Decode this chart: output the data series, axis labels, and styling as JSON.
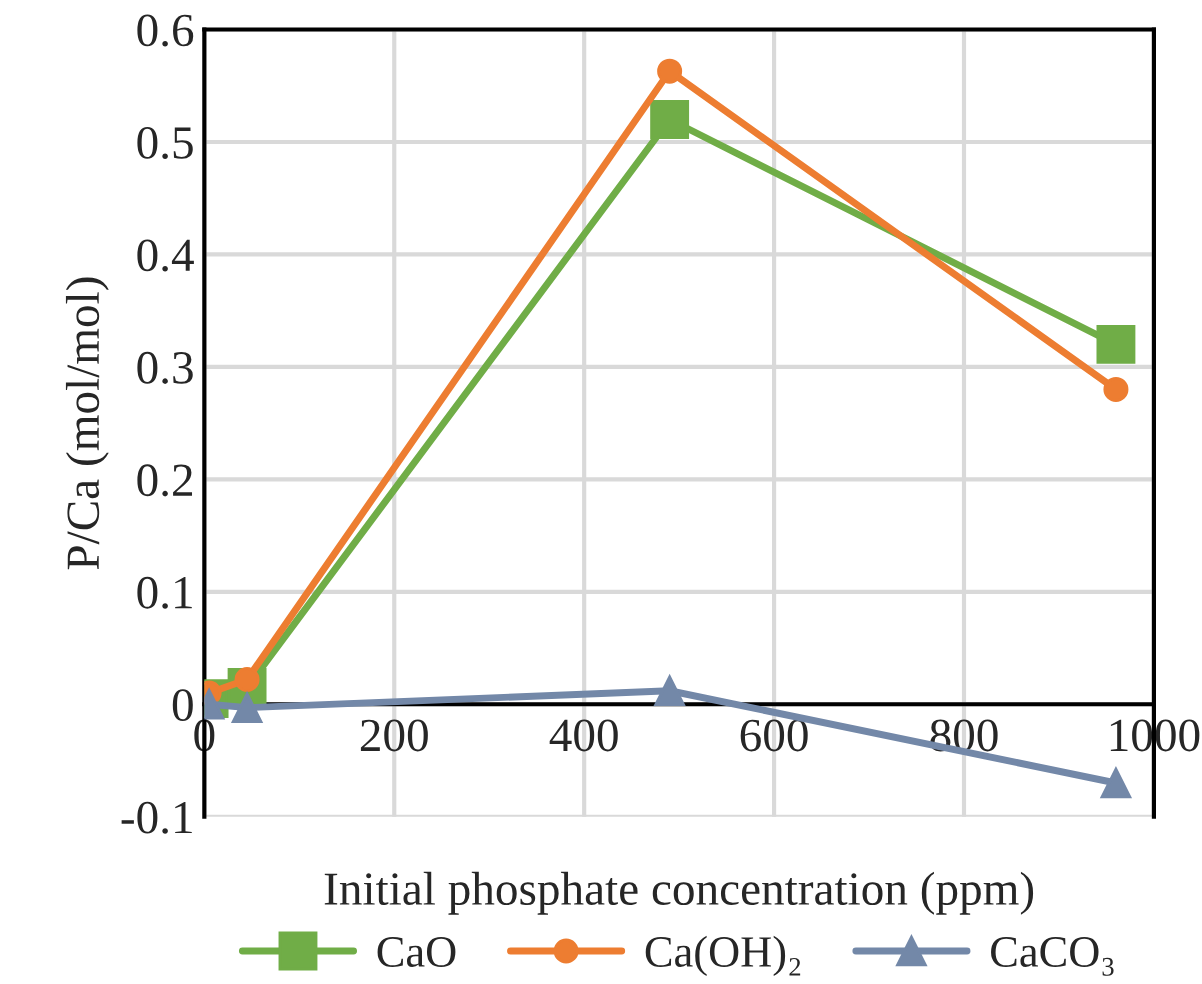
{
  "chart_data": {
    "type": "line",
    "xlabel": "Initial phosphate concentration (ppm)",
    "ylabel": "P/Ca (mol/mol)",
    "x": [
      5,
      45,
      490,
      960
    ],
    "series": [
      {
        "name": "CaO",
        "color": "#70ad47",
        "marker": "square",
        "values": [
          0.005,
          0.015,
          0.52,
          0.32
        ]
      },
      {
        "name": "Ca(OH)₂",
        "color": "#ed7d31",
        "marker": "circle",
        "values": [
          0.01,
          0.022,
          0.563,
          0.28
        ]
      },
      {
        "name": "CaCO₃",
        "color": "#7388a8",
        "marker": "triangle",
        "values": [
          0.0,
          -0.003,
          0.012,
          -0.07
        ]
      }
    ],
    "xlim": [
      0,
      1000
    ],
    "xticks": [
      0,
      200,
      400,
      600,
      800,
      1000
    ],
    "ylim": [
      -0.1,
      0.6
    ],
    "yticks": [
      -0.1,
      0,
      0.1,
      0.2,
      0.3,
      0.4,
      0.5,
      0.6
    ],
    "grid": true,
    "legend": "bottom"
  }
}
